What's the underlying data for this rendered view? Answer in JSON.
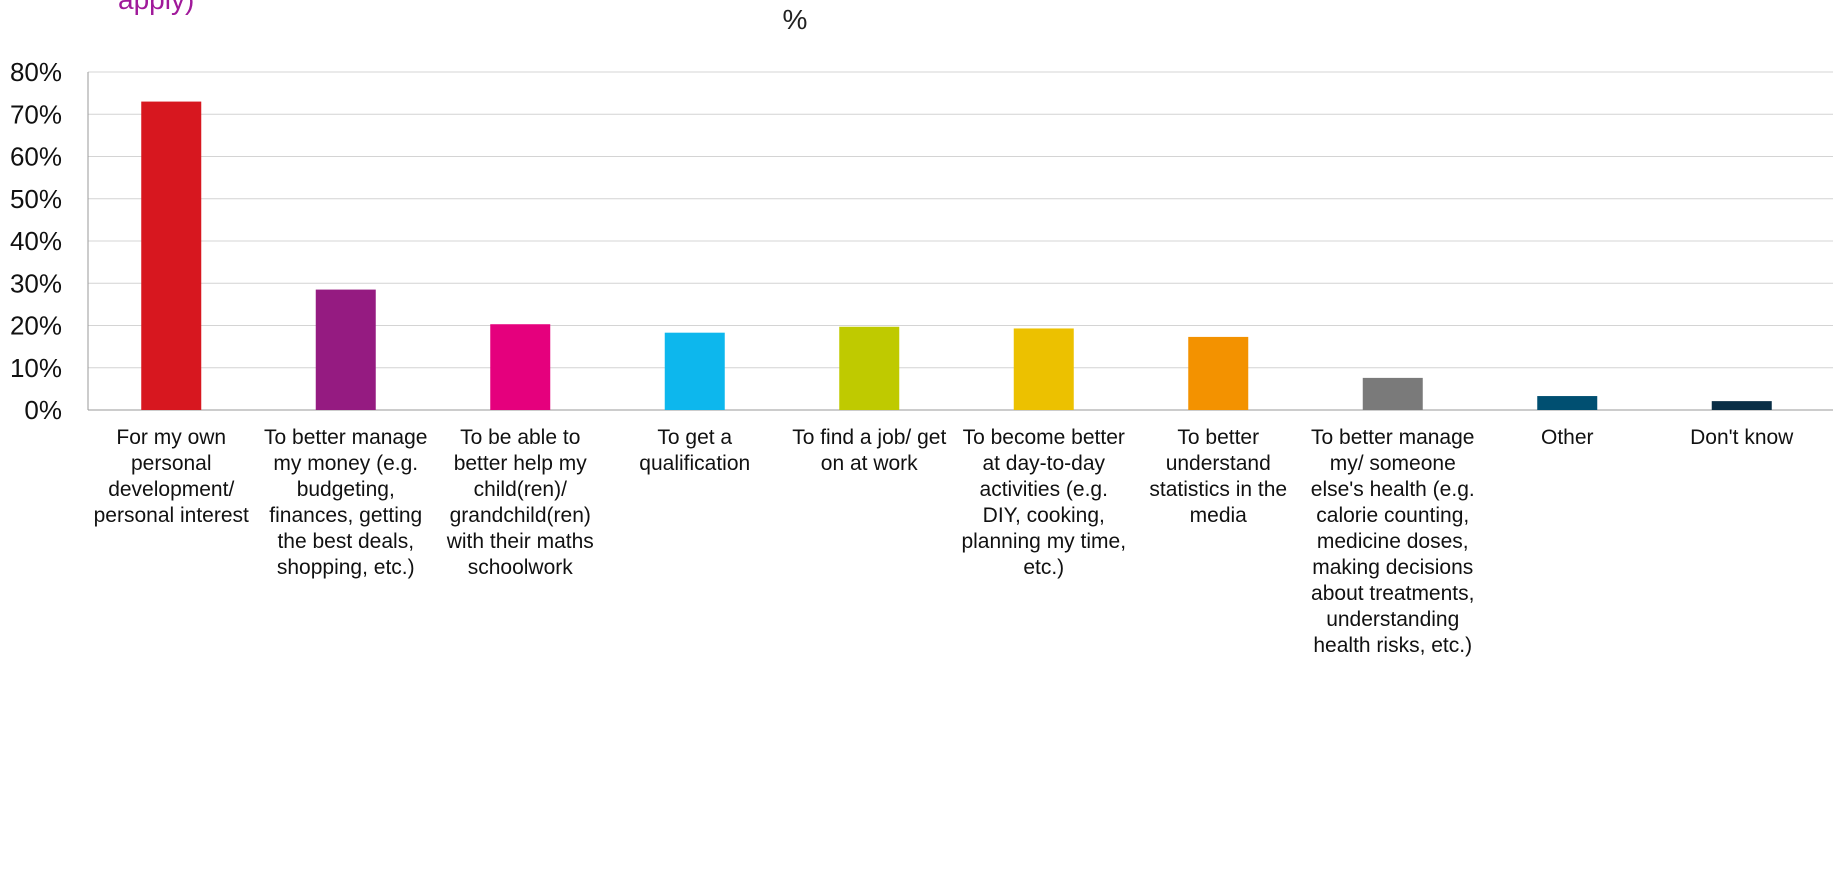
{
  "header": {
    "clipped_caption": "apply)",
    "unit_title": "%"
  },
  "chart_data": {
    "type": "bar",
    "categories": [
      "For my own personal development/ personal interest",
      "To better manage my money (e.g. budgeting, finances, getting the best deals, shopping, etc.)",
      "To be able to better help my child(ren)/ grandchild(ren) with their maths schoolwork",
      "To get a qualification",
      "To find a job/ get on at work",
      "To become better at day-to-day activities (e.g. DIY, cooking, planning my time, etc.)",
      "To better understand statistics in the media",
      "To better manage my/ someone else's health (e.g. calorie counting, medicine doses, making decisions about treatments, understanding health risks, etc.)",
      "Other",
      "Don't know"
    ],
    "values": [
      73,
      28.5,
      20.3,
      18.3,
      19.7,
      19.3,
      17.3,
      7.6,
      3.3,
      2.1
    ],
    "colors": [
      "#d7171f",
      "#951b81",
      "#e5007d",
      "#0db7ed",
      "#bfca00",
      "#ecc100",
      "#f39200",
      "#7a7a7a",
      "#004f71",
      "#092e46"
    ],
    "ylim": [
      0,
      80
    ],
    "yticks": [
      "0%",
      "10%",
      "20%",
      "30%",
      "40%",
      "50%",
      "60%",
      "70%",
      "80%"
    ],
    "grid": true
  }
}
